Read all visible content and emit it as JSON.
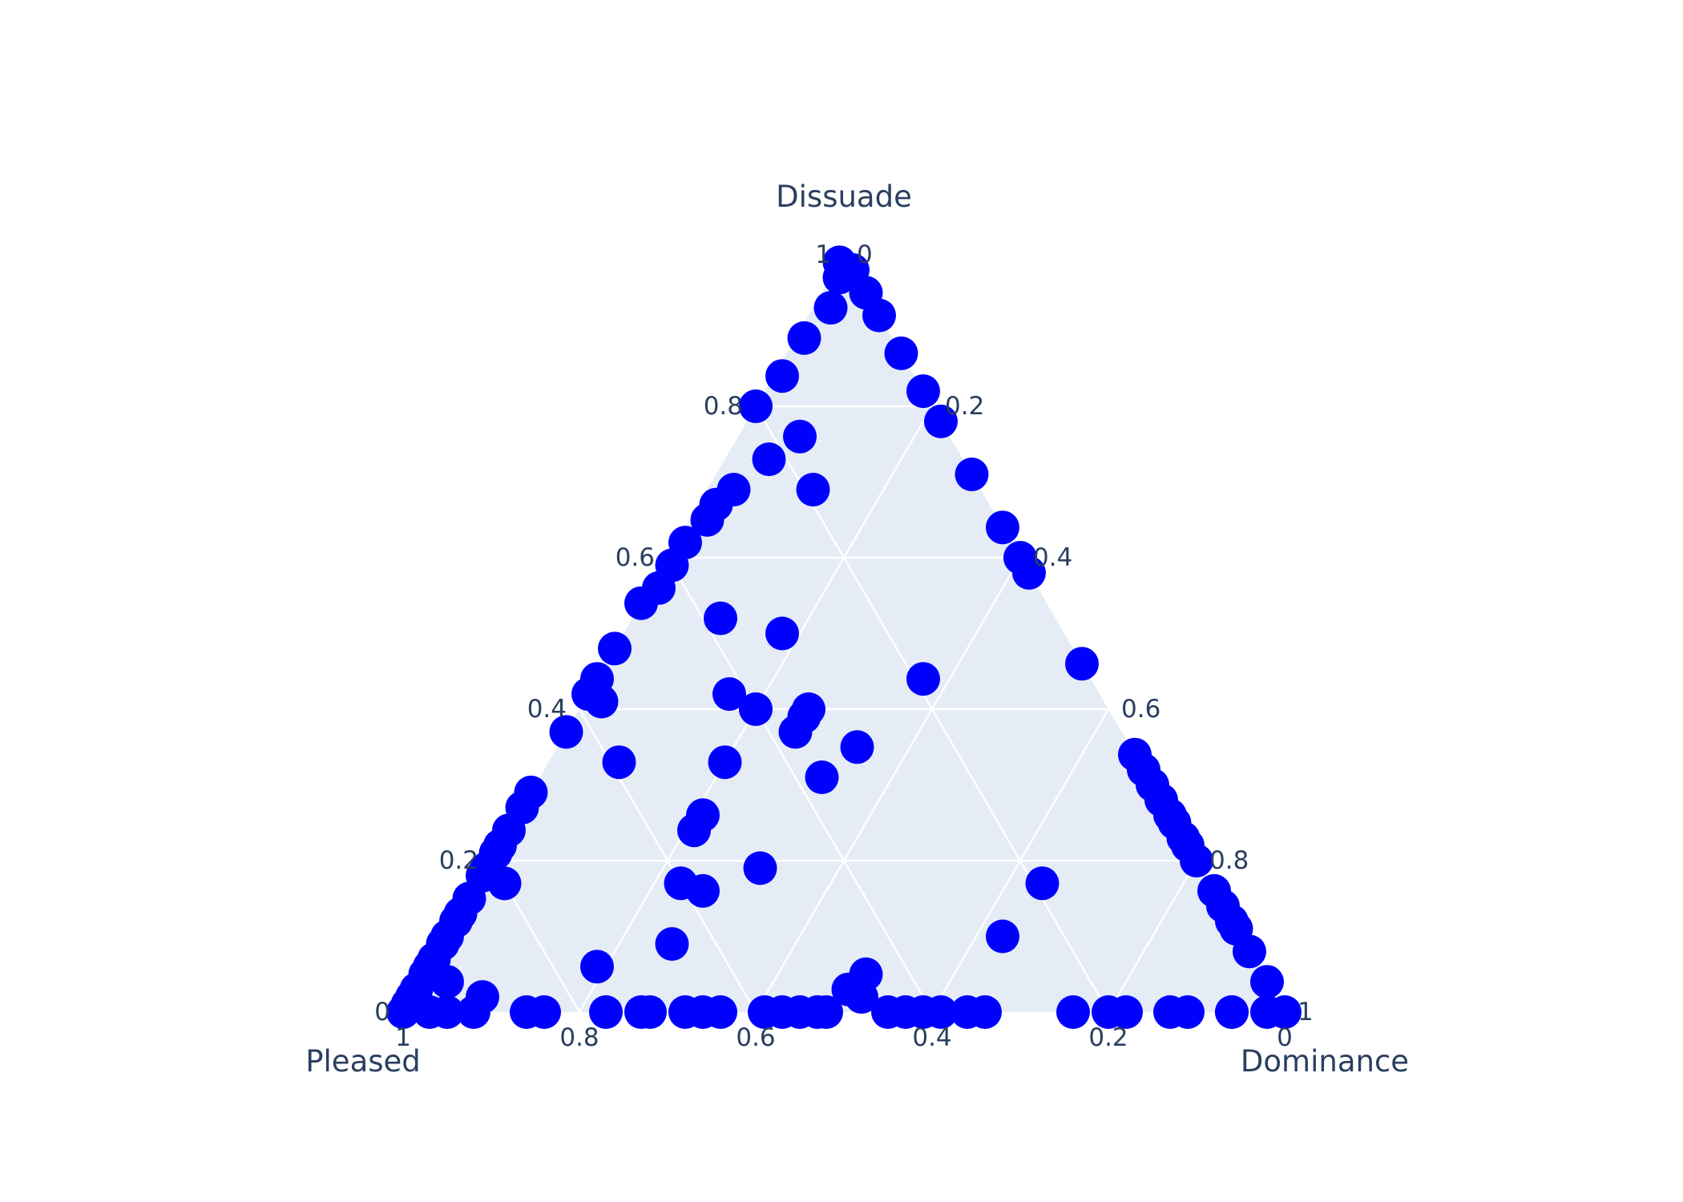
{
  "chart_data": {
    "type": "scatter",
    "subtype": "ternary",
    "title": "",
    "axes": {
      "a": {
        "title": "Dissuade",
        "ticks": [
          0,
          0.2,
          0.4,
          0.6,
          0.8,
          1
        ],
        "tick_labels": [
          "0",
          "0.2",
          "0.4",
          "0.6",
          "0.8",
          "1"
        ]
      },
      "b": {
        "title": "Pleased",
        "ticks": [
          0,
          0.2,
          0.4,
          0.6,
          0.8,
          1
        ],
        "tick_labels": [
          "0",
          "0.2",
          "0.4",
          "0.6",
          "0.8",
          "1"
        ]
      },
      "c": {
        "title": "Dominance",
        "ticks": [
          0,
          0.2,
          0.4,
          0.6,
          0.8,
          1
        ],
        "tick_labels": [
          "0",
          "0.2",
          "0.4",
          "0.6",
          "0.8",
          "1"
        ]
      }
    },
    "grid": true,
    "legend": "none",
    "colors": {
      "marker": "#0000ff",
      "plot_bg": "#e5ecf6",
      "grid": "#ffffff",
      "text": "#2a3f5f"
    },
    "points": [
      [
        0.99,
        0.01,
        0.0
      ],
      [
        0.98,
        0.0,
        0.02
      ],
      [
        0.97,
        0.02,
        0.01
      ],
      [
        0.95,
        0.0,
        0.05
      ],
      [
        0.93,
        0.05,
        0.02
      ],
      [
        0.92,
        0.0,
        0.08
      ],
      [
        0.89,
        0.1,
        0.01
      ],
      [
        0.87,
        0.0,
        0.13
      ],
      [
        0.84,
        0.15,
        0.01
      ],
      [
        0.82,
        0.0,
        0.18
      ],
      [
        0.8,
        0.2,
        0.0
      ],
      [
        0.78,
        0.0,
        0.22
      ],
      [
        0.76,
        0.17,
        0.07
      ],
      [
        0.73,
        0.22,
        0.05
      ],
      [
        0.71,
        0.0,
        0.29
      ],
      [
        0.69,
        0.28,
        0.03
      ],
      [
        0.69,
        0.19,
        0.12
      ],
      [
        0.67,
        0.31,
        0.02
      ],
      [
        0.65,
        0.33,
        0.02
      ],
      [
        0.64,
        0.0,
        0.36
      ],
      [
        0.62,
        0.37,
        0.01
      ],
      [
        0.6,
        0.0,
        0.4
      ],
      [
        0.59,
        0.4,
        0.01
      ],
      [
        0.58,
        0.0,
        0.42
      ],
      [
        0.56,
        0.43,
        0.01
      ],
      [
        0.54,
        0.46,
        0.0
      ],
      [
        0.52,
        0.38,
        0.1
      ],
      [
        0.5,
        0.32,
        0.18
      ],
      [
        0.48,
        0.52,
        0.0
      ],
      [
        0.46,
        0.0,
        0.54
      ],
      [
        0.44,
        0.56,
        0.0
      ],
      [
        0.44,
        0.19,
        0.37
      ],
      [
        0.42,
        0.58,
        0.0
      ],
      [
        0.42,
        0.42,
        0.16
      ],
      [
        0.41,
        0.57,
        0.02
      ],
      [
        0.4,
        0.34,
        0.26
      ],
      [
        0.4,
        0.4,
        0.2
      ],
      [
        0.39,
        0.35,
        0.26
      ],
      [
        0.37,
        0.37,
        0.26
      ],
      [
        0.37,
        0.63,
        0.0
      ],
      [
        0.35,
        0.31,
        0.34
      ],
      [
        0.34,
        0.0,
        0.66
      ],
      [
        0.33,
        0.47,
        0.2
      ],
      [
        0.33,
        0.59,
        0.08
      ],
      [
        0.32,
        0.0,
        0.68
      ],
      [
        0.31,
        0.37,
        0.32
      ],
      [
        0.3,
        0.0,
        0.7
      ],
      [
        0.29,
        0.71,
        0.0
      ],
      [
        0.28,
        0.0,
        0.72
      ],
      [
        0.27,
        0.73,
        0.0
      ],
      [
        0.26,
        0.53,
        0.21
      ],
      [
        0.26,
        0.0,
        0.74
      ],
      [
        0.25,
        0.0,
        0.75
      ],
      [
        0.24,
        0.55,
        0.21
      ],
      [
        0.24,
        0.76,
        0.0
      ],
      [
        0.23,
        0.0,
        0.77
      ],
      [
        0.22,
        0.78,
        0.0
      ],
      [
        0.22,
        0.0,
        0.78
      ],
      [
        0.21,
        0.79,
        0.0
      ],
      [
        0.2,
        0.0,
        0.8
      ],
      [
        0.19,
        0.81,
        0.0
      ],
      [
        0.19,
        0.5,
        0.31
      ],
      [
        0.18,
        0.82,
        0.0
      ],
      [
        0.17,
        0.6,
        0.23
      ],
      [
        0.17,
        0.8,
        0.03
      ],
      [
        0.17,
        0.19,
        0.64
      ],
      [
        0.16,
        0.0,
        0.84
      ],
      [
        0.16,
        0.58,
        0.26
      ],
      [
        0.15,
        0.85,
        0.0
      ],
      [
        0.14,
        0.0,
        0.86
      ],
      [
        0.13,
        0.87,
        0.0
      ],
      [
        0.12,
        0.0,
        0.88
      ],
      [
        0.12,
        0.88,
        0.0
      ],
      [
        0.11,
        0.0,
        0.89
      ],
      [
        0.1,
        0.9,
        0.0
      ],
      [
        0.1,
        0.27,
        0.63
      ],
      [
        0.09,
        0.91,
        0.0
      ],
      [
        0.09,
        0.65,
        0.26
      ],
      [
        0.08,
        0.0,
        0.92
      ],
      [
        0.07,
        0.93,
        0.0
      ],
      [
        0.06,
        0.94,
        0.0
      ],
      [
        0.06,
        0.75,
        0.19
      ],
      [
        0.05,
        0.95,
        0.0
      ],
      [
        0.04,
        0.93,
        0.03
      ],
      [
        0.04,
        0.0,
        0.96
      ],
      [
        0.03,
        0.97,
        0.0
      ],
      [
        0.02,
        0.98,
        0.0
      ],
      [
        0.02,
        0.9,
        0.08
      ],
      [
        0.01,
        0.99,
        0.0
      ],
      [
        0.0,
        1.0,
        0.0
      ],
      [
        0.05,
        0.45,
        0.5
      ],
      [
        0.03,
        0.48,
        0.49
      ],
      [
        0.02,
        0.47,
        0.51
      ],
      [
        0.0,
        0.45,
        0.55
      ],
      [
        0.0,
        0.43,
        0.57
      ],
      [
        0.0,
        0.39,
        0.61
      ],
      [
        0.0,
        0.41,
        0.59
      ],
      [
        0.0,
        0.36,
        0.64
      ],
      [
        0.0,
        0.34,
        0.66
      ],
      [
        0.0,
        0.24,
        0.76
      ],
      [
        0.0,
        0.2,
        0.8
      ],
      [
        0.0,
        0.18,
        0.82
      ],
      [
        0.0,
        0.13,
        0.87
      ],
      [
        0.0,
        0.11,
        0.89
      ],
      [
        0.0,
        0.06,
        0.94
      ],
      [
        0.0,
        0.06,
        0.94
      ],
      [
        0.0,
        0.02,
        0.98
      ],
      [
        0.0,
        0.0,
        1.0
      ],
      [
        0.0,
        0.77,
        0.23
      ],
      [
        0.0,
        0.73,
        0.27
      ],
      [
        0.0,
        0.72,
        0.28
      ],
      [
        0.0,
        0.68,
        0.32
      ],
      [
        0.0,
        0.66,
        0.34
      ],
      [
        0.0,
        0.64,
        0.36
      ],
      [
        0.0,
        0.59,
        0.41
      ],
      [
        0.0,
        0.57,
        0.43
      ],
      [
        0.0,
        0.55,
        0.45
      ],
      [
        0.0,
        0.53,
        0.47
      ],
      [
        0.0,
        0.52,
        0.48
      ],
      [
        0.0,
        0.84,
        0.16
      ],
      [
        0.0,
        0.86,
        0.14
      ],
      [
        0.0,
        0.92,
        0.08
      ],
      [
        0.0,
        0.95,
        0.05
      ],
      [
        0.0,
        0.97,
        0.03
      ]
    ]
  }
}
